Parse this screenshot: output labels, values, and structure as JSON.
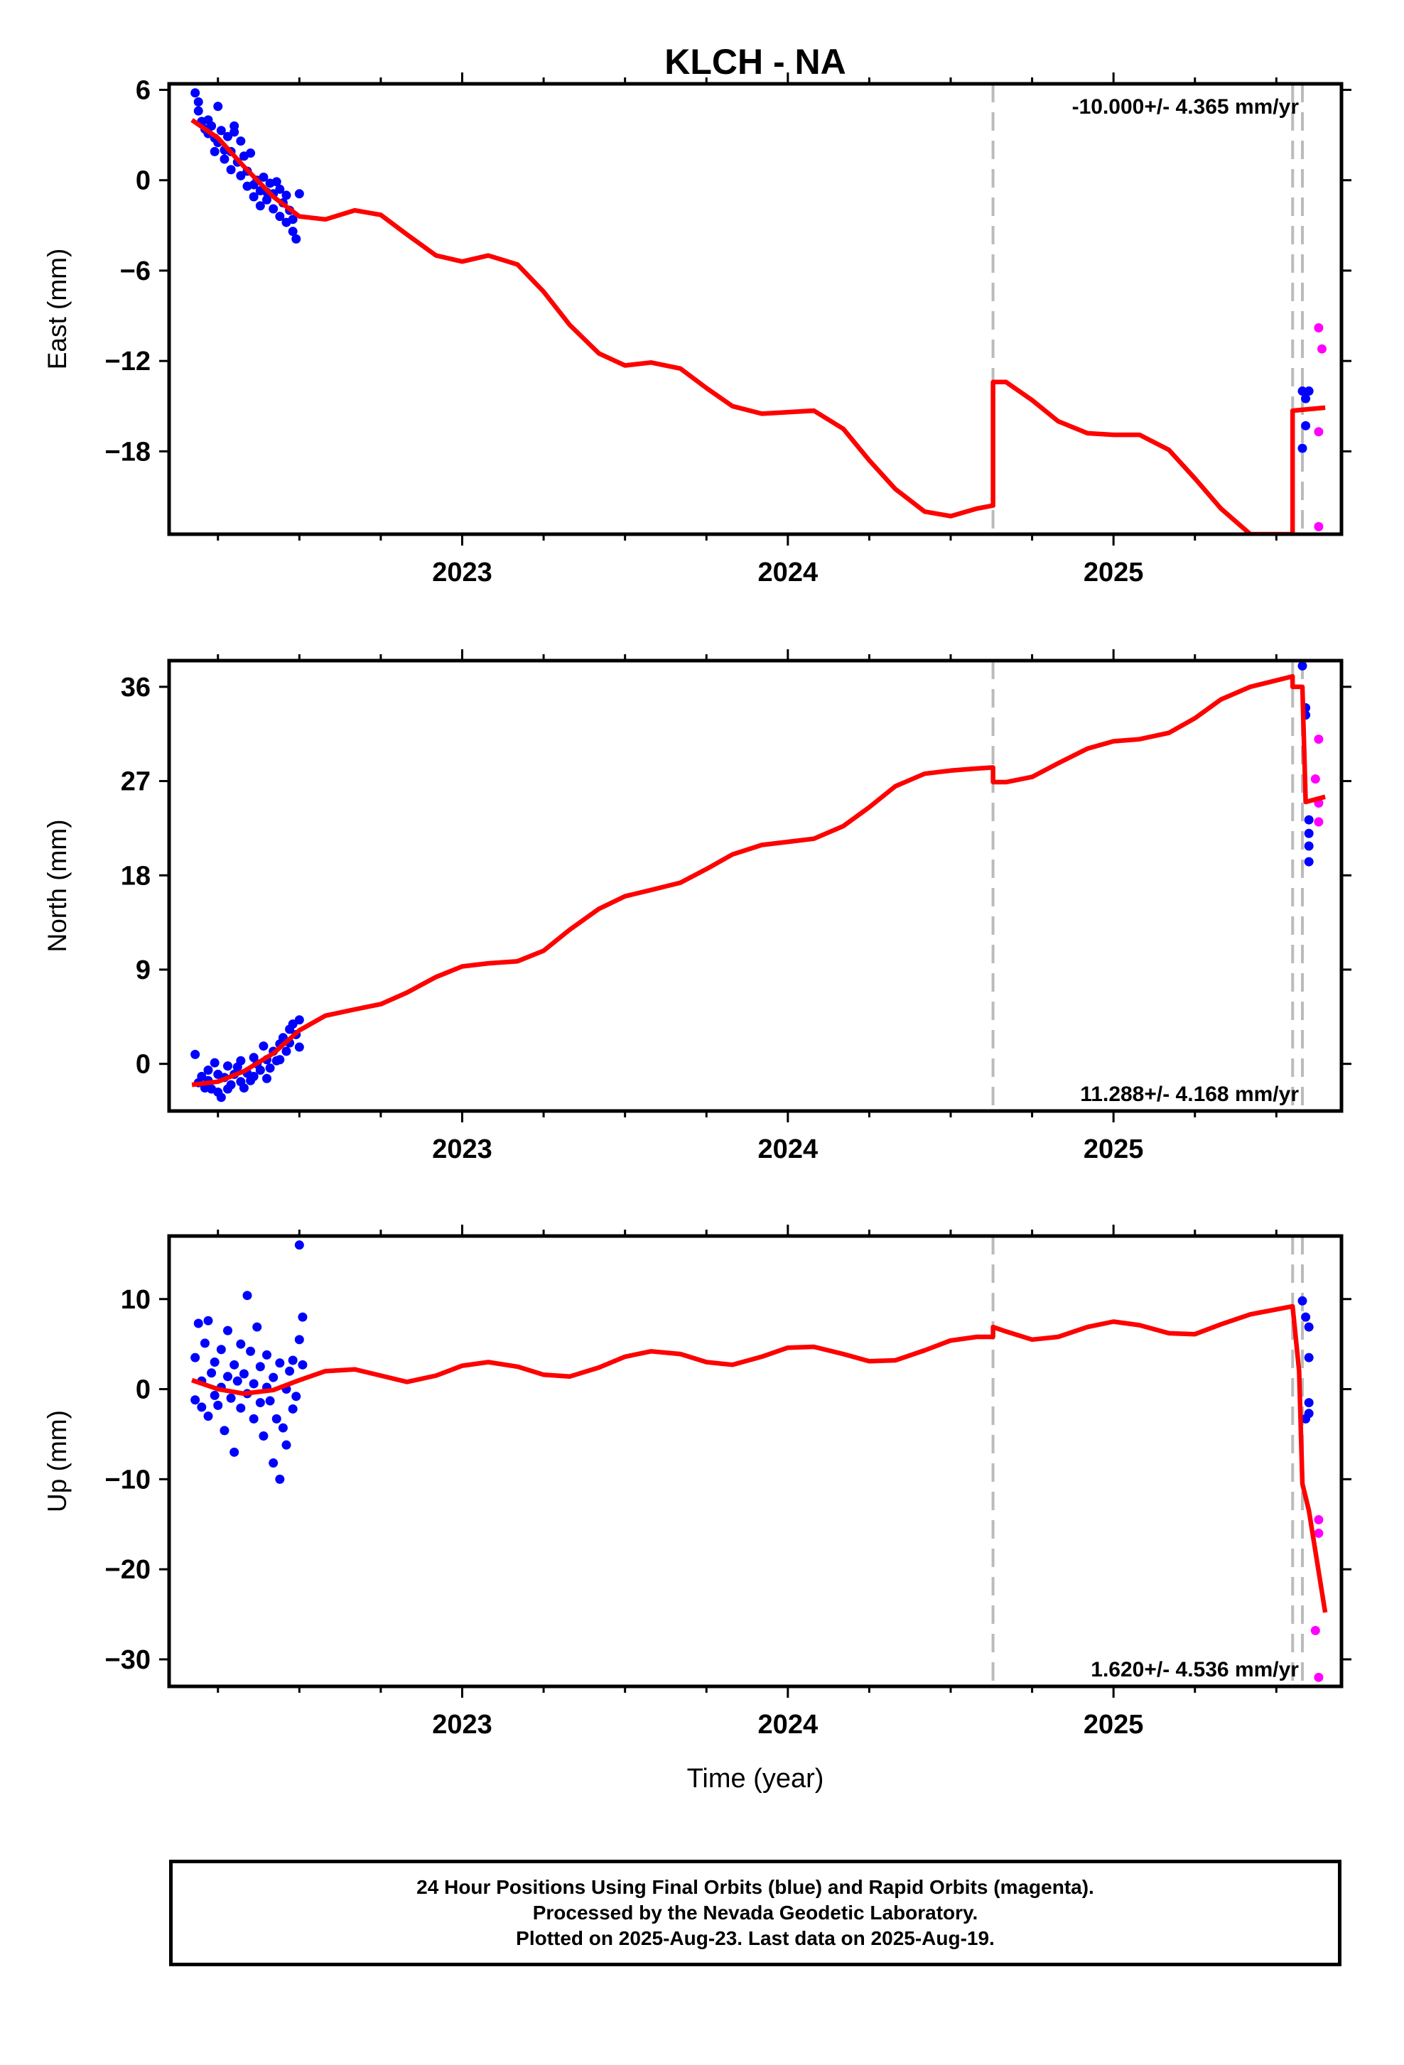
{
  "footer": {
    "line1": "24 Hour Positions Using Final Orbits (blue) and Rapid Orbits (magenta).",
    "line2": "Processed by the Nevada Geodetic Laboratory.",
    "line3": "Plotted on 2025-Aug-23. Last data on 2025-Aug-19."
  },
  "colors": {
    "final_orbits": "#0000ff",
    "rapid_orbits": "#ff00ff",
    "model_fit": "#ff0000",
    "breaks": "#bbbbbb"
  },
  "chart_data": [
    {
      "type": "scatter",
      "title": "KLCH - NA",
      "ylabel": "East (mm)",
      "xlabel": "",
      "xlim": [
        2022.1,
        2025.7
      ],
      "ylim": [
        -23.5,
        6.4
      ],
      "yticks": [
        6,
        0,
        -6,
        -12,
        -18
      ],
      "xticks": [
        2023,
        2024,
        2025
      ],
      "rate_text": "-10.000+/- 4.365 mm/yr",
      "rate_position": "top-right",
      "breaks": [
        2024.63,
        2025.55,
        2025.58
      ],
      "final": [
        [
          2022.18,
          5.8
        ],
        [
          2022.19,
          5.2
        ],
        [
          2022.19,
          4.6
        ],
        [
          2022.2,
          3.9
        ],
        [
          2022.21,
          3.4
        ],
        [
          2022.22,
          4.0
        ],
        [
          2022.22,
          3.1
        ],
        [
          2022.23,
          3.6
        ],
        [
          2022.24,
          2.8
        ],
        [
          2022.24,
          1.9
        ],
        [
          2022.25,
          2.5
        ],
        [
          2022.25,
          4.9
        ],
        [
          2022.26,
          3.3
        ],
        [
          2022.27,
          2.0
        ],
        [
          2022.27,
          1.4
        ],
        [
          2022.28,
          2.9
        ],
        [
          2022.29,
          0.7
        ],
        [
          2022.29,
          1.9
        ],
        [
          2022.3,
          3.2
        ],
        [
          2022.3,
          3.6
        ],
        [
          2022.31,
          1.2
        ],
        [
          2022.32,
          0.3
        ],
        [
          2022.32,
          2.6
        ],
        [
          2022.33,
          1.6
        ],
        [
          2022.34,
          0.6
        ],
        [
          2022.34,
          -0.4
        ],
        [
          2022.35,
          1.8
        ],
        [
          2022.36,
          -0.3
        ],
        [
          2022.36,
          -1.1
        ],
        [
          2022.37,
          0.0
        ],
        [
          2022.38,
          -0.7
        ],
        [
          2022.38,
          -1.7
        ],
        [
          2022.39,
          0.2
        ],
        [
          2022.4,
          -0.8
        ],
        [
          2022.4,
          -1.3
        ],
        [
          2022.41,
          -0.2
        ],
        [
          2022.42,
          -1.9
        ],
        [
          2022.42,
          -0.9
        ],
        [
          2022.43,
          -0.1
        ],
        [
          2022.44,
          -2.4
        ],
        [
          2022.44,
          -0.6
        ],
        [
          2022.45,
          -1.5
        ],
        [
          2022.46,
          -2.8
        ],
        [
          2022.46,
          -1.0
        ],
        [
          2022.47,
          -2.0
        ],
        [
          2022.48,
          -3.4
        ],
        [
          2022.48,
          -2.6
        ],
        [
          2022.49,
          -3.9
        ],
        [
          2022.5,
          -0.9
        ]
      ],
      "rapid": [
        [
          2025.63,
          -9.8
        ],
        [
          2025.64,
          -11.2
        ],
        [
          2025.63,
          -16.7
        ],
        [
          2025.63,
          -23.0
        ]
      ],
      "final_end": [
        [
          2025.58,
          -14.0
        ],
        [
          2025.59,
          -14.5
        ],
        [
          2025.59,
          -16.3
        ],
        [
          2025.58,
          -17.8
        ],
        [
          2025.6,
          -14.0
        ]
      ],
      "model": [
        [
          2022.17,
          4.0
        ],
        [
          2022.25,
          2.8
        ],
        [
          2022.33,
          0.9
        ],
        [
          2022.42,
          -1.1
        ],
        [
          2022.5,
          -2.4
        ],
        [
          2022.58,
          -2.6
        ],
        [
          2022.67,
          -2.0
        ],
        [
          2022.75,
          -2.3
        ],
        [
          2022.83,
          -3.6
        ],
        [
          2022.92,
          -5.0
        ],
        [
          2023.0,
          -5.4
        ],
        [
          2023.08,
          -5.0
        ],
        [
          2023.17,
          -5.6
        ],
        [
          2023.25,
          -7.4
        ],
        [
          2023.33,
          -9.6
        ],
        [
          2023.42,
          -11.5
        ],
        [
          2023.5,
          -12.3
        ],
        [
          2023.58,
          -12.1
        ],
        [
          2023.67,
          -12.5
        ],
        [
          2023.75,
          -13.8
        ],
        [
          2023.83,
          -15.0
        ],
        [
          2023.92,
          -15.5
        ],
        [
          2024.0,
          -15.4
        ],
        [
          2024.08,
          -15.3
        ],
        [
          2024.17,
          -16.5
        ],
        [
          2024.25,
          -18.6
        ],
        [
          2024.33,
          -20.5
        ],
        [
          2024.42,
          -22.0
        ],
        [
          2024.5,
          -22.3
        ],
        [
          2024.58,
          -21.8
        ],
        [
          2024.63,
          -21.6
        ],
        [
          2024.63,
          -13.4
        ],
        [
          2024.67,
          -13.4
        ],
        [
          2024.75,
          -14.6
        ],
        [
          2024.83,
          -16.0
        ],
        [
          2024.92,
          -16.8
        ],
        [
          2025.0,
          -16.9
        ],
        [
          2025.08,
          -16.9
        ],
        [
          2025.17,
          -17.9
        ],
        [
          2025.25,
          -19.8
        ],
        [
          2025.33,
          -21.8
        ],
        [
          2025.42,
          -23.5
        ],
        [
          2025.55,
          -23.5
        ],
        [
          2025.55,
          -15.3
        ],
        [
          2025.6,
          -15.2
        ],
        [
          2025.65,
          -15.1
        ]
      ]
    },
    {
      "type": "scatter",
      "title": "",
      "ylabel": "North (mm)",
      "xlabel": "",
      "xlim": [
        2022.1,
        2025.7
      ],
      "ylim": [
        -4.5,
        38.5
      ],
      "yticks": [
        36,
        27,
        18,
        9,
        0
      ],
      "xticks": [
        2023,
        2024,
        2025
      ],
      "rate_text": "11.288+/- 4.168 mm/yr",
      "rate_position": "bottom-right",
      "breaks": [
        2024.63,
        2025.55,
        2025.58
      ],
      "final": [
        [
          2022.18,
          0.9
        ],
        [
          2022.19,
          -1.8
        ],
        [
          2022.2,
          -1.2
        ],
        [
          2022.21,
          -2.3
        ],
        [
          2022.22,
          -0.6
        ],
        [
          2022.22,
          -1.6
        ],
        [
          2022.23,
          -2.4
        ],
        [
          2022.24,
          0.1
        ],
        [
          2022.25,
          -2.7
        ],
        [
          2022.25,
          -1.0
        ],
        [
          2022.26,
          -3.2
        ],
        [
          2022.27,
          -1.3
        ],
        [
          2022.28,
          -0.2
        ],
        [
          2022.28,
          -2.4
        ],
        [
          2022.29,
          -2.0
        ],
        [
          2022.3,
          -1.0
        ],
        [
          2022.31,
          -0.3
        ],
        [
          2022.32,
          -1.7
        ],
        [
          2022.32,
          0.3
        ],
        [
          2022.33,
          -2.3
        ],
        [
          2022.34,
          -0.9
        ],
        [
          2022.35,
          -1.6
        ],
        [
          2022.36,
          0.6
        ],
        [
          2022.36,
          -1.2
        ],
        [
          2022.37,
          0.0
        ],
        [
          2022.38,
          -0.6
        ],
        [
          2022.39,
          1.7
        ],
        [
          2022.4,
          -1.4
        ],
        [
          2022.4,
          0.4
        ],
        [
          2022.41,
          -0.4
        ],
        [
          2022.42,
          1.2
        ],
        [
          2022.43,
          0.3
        ],
        [
          2022.44,
          1.9
        ],
        [
          2022.44,
          0.4
        ],
        [
          2022.45,
          2.5
        ],
        [
          2022.46,
          1.2
        ],
        [
          2022.47,
          3.3
        ],
        [
          2022.47,
          2.0
        ],
        [
          2022.48,
          3.8
        ],
        [
          2022.49,
          2.8
        ],
        [
          2022.5,
          4.2
        ],
        [
          2022.5,
          1.6
        ]
      ],
      "rapid": [
        [
          2025.63,
          31.0
        ],
        [
          2025.62,
          27.2
        ],
        [
          2025.63,
          24.9
        ],
        [
          2025.63,
          23.1
        ]
      ],
      "final_end": [
        [
          2025.58,
          38.0
        ],
        [
          2025.59,
          34.0
        ],
        [
          2025.59,
          33.3
        ],
        [
          2025.6,
          23.3
        ],
        [
          2025.6,
          22.0
        ],
        [
          2025.6,
          20.8
        ],
        [
          2025.6,
          19.3
        ]
      ],
      "model": [
        [
          2022.17,
          -2.0
        ],
        [
          2022.25,
          -1.7
        ],
        [
          2022.33,
          -0.7
        ],
        [
          2022.42,
          1.0
        ],
        [
          2022.5,
          3.2
        ],
        [
          2022.58,
          4.6
        ],
        [
          2022.67,
          5.2
        ],
        [
          2022.75,
          5.7
        ],
        [
          2022.83,
          6.8
        ],
        [
          2022.92,
          8.3
        ],
        [
          2023.0,
          9.3
        ],
        [
          2023.08,
          9.6
        ],
        [
          2023.17,
          9.8
        ],
        [
          2023.25,
          10.8
        ],
        [
          2023.33,
          12.8
        ],
        [
          2023.42,
          14.8
        ],
        [
          2023.5,
          16.0
        ],
        [
          2023.58,
          16.6
        ],
        [
          2023.67,
          17.3
        ],
        [
          2023.75,
          18.6
        ],
        [
          2023.83,
          20.0
        ],
        [
          2023.92,
          20.9
        ],
        [
          2024.0,
          21.2
        ],
        [
          2024.08,
          21.5
        ],
        [
          2024.17,
          22.7
        ],
        [
          2024.25,
          24.5
        ],
        [
          2024.33,
          26.5
        ],
        [
          2024.42,
          27.7
        ],
        [
          2024.5,
          28.0
        ],
        [
          2024.58,
          28.2
        ],
        [
          2024.63,
          28.3
        ],
        [
          2024.63,
          26.9
        ],
        [
          2024.67,
          26.9
        ],
        [
          2024.75,
          27.4
        ],
        [
          2024.83,
          28.7
        ],
        [
          2024.92,
          30.1
        ],
        [
          2025.0,
          30.8
        ],
        [
          2025.08,
          31.0
        ],
        [
          2025.17,
          31.6
        ],
        [
          2025.25,
          33.0
        ],
        [
          2025.33,
          34.8
        ],
        [
          2025.42,
          36.0
        ],
        [
          2025.55,
          37.0
        ],
        [
          2025.55,
          36.0
        ],
        [
          2025.58,
          36.0
        ],
        [
          2025.59,
          25.0
        ],
        [
          2025.65,
          25.5
        ]
      ]
    },
    {
      "type": "scatter",
      "title": "",
      "ylabel": "Up (mm)",
      "xlabel": "Time (year)",
      "xlim": [
        2022.1,
        2025.7
      ],
      "ylim": [
        -33,
        17
      ],
      "yticks": [
        10,
        0,
        -10,
        -20,
        -30
      ],
      "xticks": [
        2023,
        2024,
        2025
      ],
      "rate_text": "1.620+/- 4.536 mm/yr",
      "rate_position": "bottom-right",
      "breaks": [
        2024.63,
        2025.55,
        2025.58
      ],
      "final": [
        [
          2022.18,
          3.5
        ],
        [
          2022.18,
          -1.2
        ],
        [
          2022.19,
          7.3
        ],
        [
          2022.2,
          0.9
        ],
        [
          2022.2,
          -2.0
        ],
        [
          2022.21,
          5.1
        ],
        [
          2022.22,
          7.6
        ],
        [
          2022.22,
          -3.0
        ],
        [
          2022.23,
          1.8
        ],
        [
          2022.24,
          -0.7
        ],
        [
          2022.24,
          3.0
        ],
        [
          2022.25,
          -1.8
        ],
        [
          2022.26,
          4.4
        ],
        [
          2022.26,
          0.2
        ],
        [
          2022.27,
          -4.6
        ],
        [
          2022.28,
          1.4
        ],
        [
          2022.28,
          6.5
        ],
        [
          2022.29,
          -1.0
        ],
        [
          2022.3,
          2.7
        ],
        [
          2022.3,
          -7.0
        ],
        [
          2022.31,
          0.9
        ],
        [
          2022.32,
          5.0
        ],
        [
          2022.32,
          -2.1
        ],
        [
          2022.33,
          1.7
        ],
        [
          2022.34,
          10.4
        ],
        [
          2022.34,
          -0.5
        ],
        [
          2022.35,
          4.2
        ],
        [
          2022.36,
          -3.3
        ],
        [
          2022.36,
          0.6
        ],
        [
          2022.37,
          6.9
        ],
        [
          2022.38,
          -1.5
        ],
        [
          2022.38,
          2.5
        ],
        [
          2022.39,
          -5.2
        ],
        [
          2022.4,
          0.2
        ],
        [
          2022.4,
          3.8
        ],
        [
          2022.41,
          -1.3
        ],
        [
          2022.42,
          -8.2
        ],
        [
          2022.42,
          1.3
        ],
        [
          2022.43,
          -3.3
        ],
        [
          2022.44,
          -10.0
        ],
        [
          2022.44,
          2.9
        ],
        [
          2022.45,
          -4.3
        ],
        [
          2022.46,
          0.0
        ],
        [
          2022.46,
          -6.2
        ],
        [
          2022.47,
          2.0
        ],
        [
          2022.48,
          -2.2
        ],
        [
          2022.48,
          3.2
        ],
        [
          2022.49,
          -0.8
        ],
        [
          2022.5,
          5.5
        ],
        [
          2022.5,
          16.0
        ],
        [
          2022.51,
          2.7
        ],
        [
          2022.51,
          8.0
        ]
      ],
      "rapid": [
        [
          2025.63,
          -14.5
        ],
        [
          2025.63,
          -16.0
        ],
        [
          2025.62,
          -26.8
        ],
        [
          2025.63,
          -32.0
        ]
      ],
      "final_end": [
        [
          2025.58,
          9.8
        ],
        [
          2025.59,
          8.0
        ],
        [
          2025.6,
          6.9
        ],
        [
          2025.6,
          3.5
        ],
        [
          2025.6,
          -1.5
        ],
        [
          2025.6,
          -2.7
        ],
        [
          2025.59,
          -3.3
        ]
      ],
      "model": [
        [
          2022.17,
          1.0
        ],
        [
          2022.25,
          0.0
        ],
        [
          2022.33,
          -0.5
        ],
        [
          2022.42,
          -0.1
        ],
        [
          2022.5,
          1.0
        ],
        [
          2022.58,
          2.0
        ],
        [
          2022.67,
          2.2
        ],
        [
          2022.75,
          1.5
        ],
        [
          2022.83,
          0.8
        ],
        [
          2022.92,
          1.5
        ],
        [
          2023.0,
          2.6
        ],
        [
          2023.08,
          3.0
        ],
        [
          2023.17,
          2.5
        ],
        [
          2023.25,
          1.6
        ],
        [
          2023.33,
          1.4
        ],
        [
          2023.42,
          2.4
        ],
        [
          2023.5,
          3.6
        ],
        [
          2023.58,
          4.2
        ],
        [
          2023.67,
          3.9
        ],
        [
          2023.75,
          3.0
        ],
        [
          2023.83,
          2.7
        ],
        [
          2023.92,
          3.6
        ],
        [
          2024.0,
          4.6
        ],
        [
          2024.08,
          4.7
        ],
        [
          2024.17,
          3.9
        ],
        [
          2024.25,
          3.1
        ],
        [
          2024.33,
          3.2
        ],
        [
          2024.42,
          4.3
        ],
        [
          2024.5,
          5.4
        ],
        [
          2024.58,
          5.8
        ],
        [
          2024.63,
          5.8
        ],
        [
          2024.63,
          6.9
        ],
        [
          2024.67,
          6.4
        ],
        [
          2024.75,
          5.5
        ],
        [
          2024.83,
          5.8
        ],
        [
          2024.92,
          6.9
        ],
        [
          2025.0,
          7.5
        ],
        [
          2025.08,
          7.1
        ],
        [
          2025.17,
          6.2
        ],
        [
          2025.25,
          6.1
        ],
        [
          2025.33,
          7.2
        ],
        [
          2025.42,
          8.3
        ],
        [
          2025.55,
          9.2
        ],
        [
          2025.57,
          2.0
        ],
        [
          2025.58,
          -10.5
        ],
        [
          2025.6,
          -13.5
        ],
        [
          2025.65,
          -24.8
        ]
      ]
    }
  ]
}
